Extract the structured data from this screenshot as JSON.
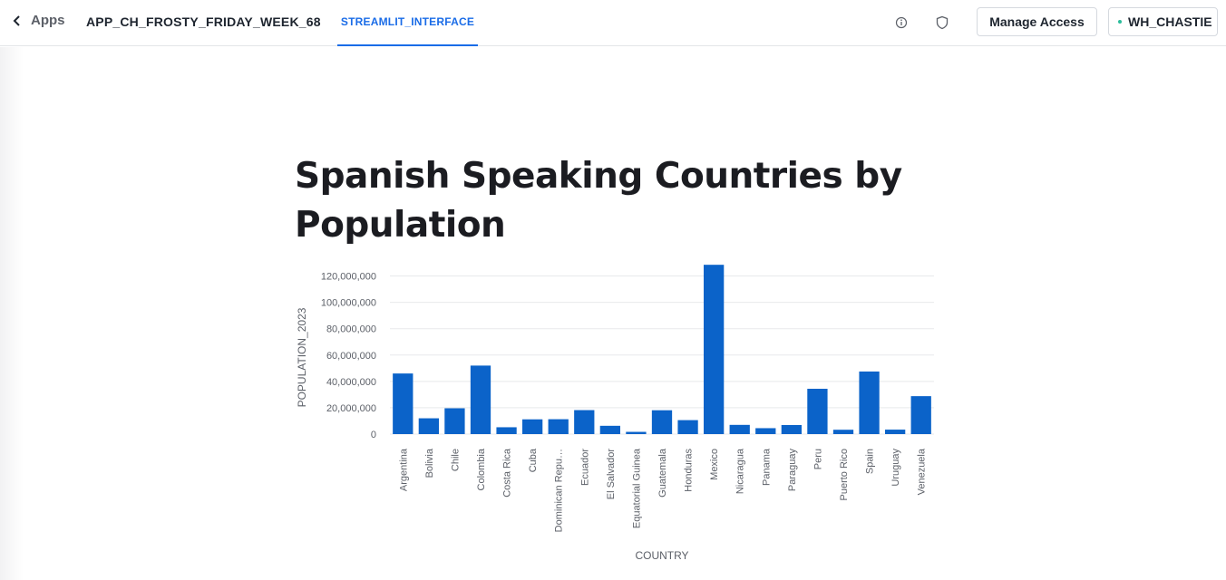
{
  "header": {
    "back_label": "Apps",
    "app_name": "APP_CH_FROSTY_FRIDAY_WEEK_68",
    "active_tab": "STREAMLIT_INTERFACE",
    "manage_access_label": "Manage Access",
    "warehouse_label": "WH_CHASTIE"
  },
  "colors": {
    "accent": "#1a6ce7",
    "bar": "#0b63c9",
    "status_dot": "#2bbd9b"
  },
  "icons": [
    "chevron-left-icon",
    "info-icon",
    "shield-icon"
  ],
  "main": {
    "title": "Spanish Speaking Countries by Population"
  },
  "chart_data": {
    "type": "bar",
    "categories": [
      "Argentina",
      "Bolivia",
      "Chile",
      "Colombia",
      "Costa Rica",
      "Cuba",
      "Dominican Repu…",
      "Ecuador",
      "El Salvador",
      "Equatorial Guinea",
      "Guatemala",
      "Honduras",
      "Mexico",
      "Nicaragua",
      "Panama",
      "Paraguay",
      "Peru",
      "Puerto Rico",
      "Spain",
      "Uruguay",
      "Venezuela"
    ],
    "values": [
      46000000,
      12000000,
      19600000,
      52000000,
      5200000,
      11200000,
      11300000,
      18200000,
      6300000,
      1700000,
      18100000,
      10600000,
      128500000,
      7000000,
      4500000,
      6900000,
      34400000,
      3300000,
      47500000,
      3400000,
      28800000
    ],
    "xlabel": "COUNTRY",
    "ylabel": "POPULATION_2023",
    "ylim": [
      0,
      130000000
    ],
    "yticks": [
      "0",
      "20,000,000",
      "40,000,000",
      "60,000,000",
      "80,000,000",
      "100,000,000",
      "120,000,000"
    ],
    "grid": true
  }
}
